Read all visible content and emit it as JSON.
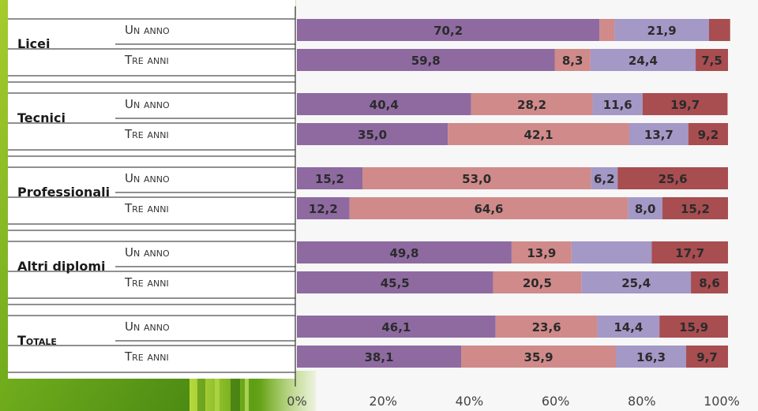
{
  "chart_data": {
    "type": "bar",
    "orientation": "horizontal",
    "stacked": true,
    "normalized": true,
    "groups": [
      {
        "label": "Licei",
        "rows": [
          {
            "label": "Un anno",
            "values": [
              70.2,
              3.5,
              21.9,
              4.9
            ],
            "labels": [
              "70,2",
              "",
              "21,9",
              ""
            ]
          },
          {
            "label": "Tre anni",
            "values": [
              59.8,
              8.3,
              24.4,
              7.5
            ],
            "labels": [
              "59,8",
              "8,3",
              "24,4",
              "7,5"
            ]
          }
        ]
      },
      {
        "label": "Tecnici",
        "rows": [
          {
            "label": "Un anno",
            "values": [
              40.4,
              28.2,
              11.6,
              19.7
            ],
            "labels": [
              "40,4",
              "28,2",
              "11,6",
              "19,7"
            ]
          },
          {
            "label": "Tre anni",
            "values": [
              35.0,
              42.1,
              13.7,
              9.2
            ],
            "labels": [
              "35,0",
              "42,1",
              "13,7",
              "9,2"
            ]
          }
        ]
      },
      {
        "label": "Professionali",
        "rows": [
          {
            "label": "Un anno",
            "values": [
              15.2,
              53.0,
              6.2,
              25.6
            ],
            "labels": [
              "15,2",
              "53,0",
              "6,2",
              "25,6"
            ]
          },
          {
            "label": "Tre anni",
            "values": [
              12.2,
              64.6,
              8.0,
              15.2
            ],
            "labels": [
              "12,2",
              "64,6",
              "8,0",
              "15,2"
            ]
          }
        ]
      },
      {
        "label": "Altri diplomi",
        "rows": [
          {
            "label": "Un anno",
            "values": [
              49.8,
              13.9,
              18.6,
              17.7
            ],
            "labels": [
              "49,8",
              "13,9",
              "",
              "17,7"
            ]
          },
          {
            "label": "Tre anni",
            "values": [
              45.5,
              20.5,
              25.4,
              8.6
            ],
            "labels": [
              "45,5",
              "20,5",
              "25,4",
              "8,6"
            ]
          }
        ]
      },
      {
        "label": "Totale",
        "rows": [
          {
            "label": "Un anno",
            "values": [
              46.1,
              23.6,
              14.4,
              15.9
            ],
            "labels": [
              "46,1",
              "23,6",
              "14,4",
              "15,9"
            ]
          },
          {
            "label": "Tre anni",
            "values": [
              38.1,
              35.9,
              16.3,
              9.7
            ],
            "labels": [
              "38,1",
              "35,9",
              "16,3",
              "9,7"
            ]
          }
        ]
      }
    ],
    "series_colors": [
      "#8e6aa1",
      "#d08a8a",
      "#a398c6",
      "#a84d50"
    ],
    "xlim": [
      0,
      100
    ],
    "x_ticks": [
      "0%",
      "20%",
      "40%",
      "60%",
      "80%",
      "100%"
    ],
    "title": "",
    "xlabel": "",
    "ylabel": "",
    "grid": false,
    "legend": "none"
  }
}
